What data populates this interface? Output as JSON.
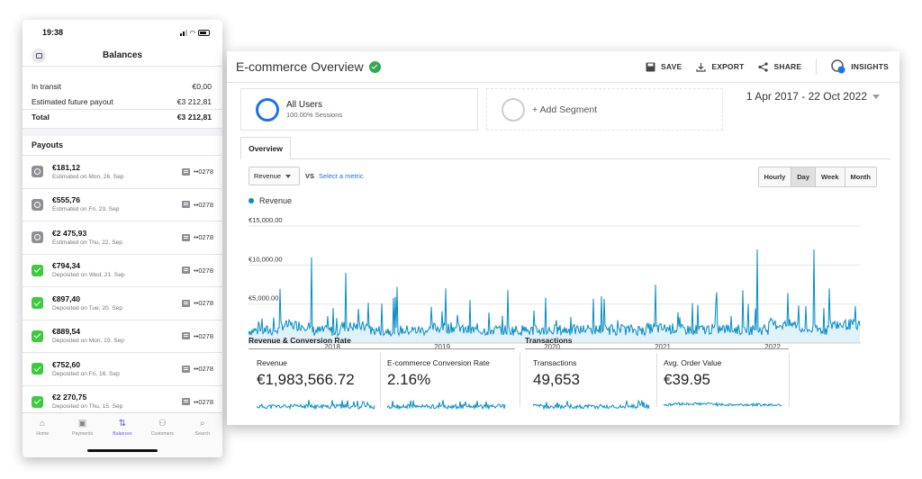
{
  "phone": {
    "time": "19:38",
    "title": "Balances",
    "balances": [
      {
        "label": "In transit",
        "value": "€0,00"
      },
      {
        "label": "Estimated future payout",
        "value": "€3 212,81"
      },
      {
        "label": "Total",
        "value": "€3 212,81"
      }
    ],
    "payouts_title": "Payouts",
    "payouts": [
      {
        "amount": "€181,12",
        "date": "Estimated on Mon, 26. Sep",
        "account": "••0278",
        "status": "pending"
      },
      {
        "amount": "€555,76",
        "date": "Estimated on Fri, 23. Sep",
        "account": "••0278",
        "status": "pending"
      },
      {
        "amount": "€2 475,93",
        "date": "Estimated on Thu, 22. Sep",
        "account": "••0278",
        "status": "pending"
      },
      {
        "amount": "€794,34",
        "date": "Deposited on Wed, 21. Sep",
        "account": "••0278",
        "status": "paid"
      },
      {
        "amount": "€897,40",
        "date": "Deposited on Tue, 20. Sep",
        "account": "••0278",
        "status": "paid"
      },
      {
        "amount": "€889,54",
        "date": "Deposited on Mon, 19. Sep",
        "account": "••0278",
        "status": "paid"
      },
      {
        "amount": "€752,60",
        "date": "Deposited on Fri, 16. Sep",
        "account": "••0278",
        "status": "paid"
      },
      {
        "amount": "€2 270,75",
        "date": "Deposited on Thu, 15. Sep",
        "account": "••0278",
        "status": "paid"
      }
    ],
    "tabs": [
      {
        "label": "Home",
        "icon": "home-icon",
        "active": false
      },
      {
        "label": "Payments",
        "icon": "payments-icon",
        "active": false
      },
      {
        "label": "Balances",
        "icon": "balances-icon",
        "active": true
      },
      {
        "label": "Customers",
        "icon": "customers-icon",
        "active": false
      },
      {
        "label": "Search",
        "icon": "search-icon",
        "active": false
      }
    ]
  },
  "ga": {
    "title": "E-commerce Overview",
    "actions": {
      "save": "SAVE",
      "export": "EXPORT",
      "share": "SHARE",
      "insights": "INSIGHTS"
    },
    "segment": {
      "name": "All Users",
      "sub": "100.00% Sessions"
    },
    "add_segment": "+ Add Segment",
    "date_range": "1 Apr 2017 - 22 Oct 2022",
    "tab": "Overview",
    "metric_select": "Revenue",
    "vs": "VS",
    "select_metric": "Select a metric",
    "granularity": [
      "Hourly",
      "Day",
      "Week",
      "Month"
    ],
    "granularity_selected": "Day",
    "legend": "Revenue",
    "sections": {
      "revenue": "Revenue & Conversion Rate",
      "transactions": "Transactions"
    },
    "cards": [
      {
        "label": "Revenue",
        "value": "€1,983,566.72"
      },
      {
        "label": "E-commerce Conversion Rate",
        "value": "2.16%"
      },
      {
        "label": "Transactions",
        "value": "49,653"
      },
      {
        "label": "Avg. Order Value",
        "value": "€39.95"
      }
    ],
    "colors": {
      "series": "#058dc7",
      "accent": "#1a73e8"
    }
  },
  "chart_data": {
    "type": "line",
    "series": [
      {
        "name": "Revenue"
      }
    ],
    "yticks": [
      "€15,000.00",
      "€10,000.00",
      "€5,000.00"
    ],
    "xticks": [
      "2018",
      "2019",
      "2020",
      "2021",
      "2022"
    ],
    "ylim": [
      0,
      15000
    ],
    "x": [
      "2018",
      "2018.25",
      "2018.5",
      "2018.75",
      "2019",
      "2019.25",
      "2019.5",
      "2019.75",
      "2020",
      "2020.25",
      "2020.5",
      "2020.75",
      "2021",
      "2021.25",
      "2021.5",
      "2021.75",
      "2022",
      "2022.25",
      "2022.5",
      "2022.75"
    ],
    "values": [
      2500,
      11000,
      2000,
      9000,
      2600,
      3000,
      7200,
      2800,
      3200,
      2600,
      3400,
      4200,
      3600,
      5800,
      4000,
      4800,
      3800,
      12000,
      4200,
      12000
    ]
  }
}
